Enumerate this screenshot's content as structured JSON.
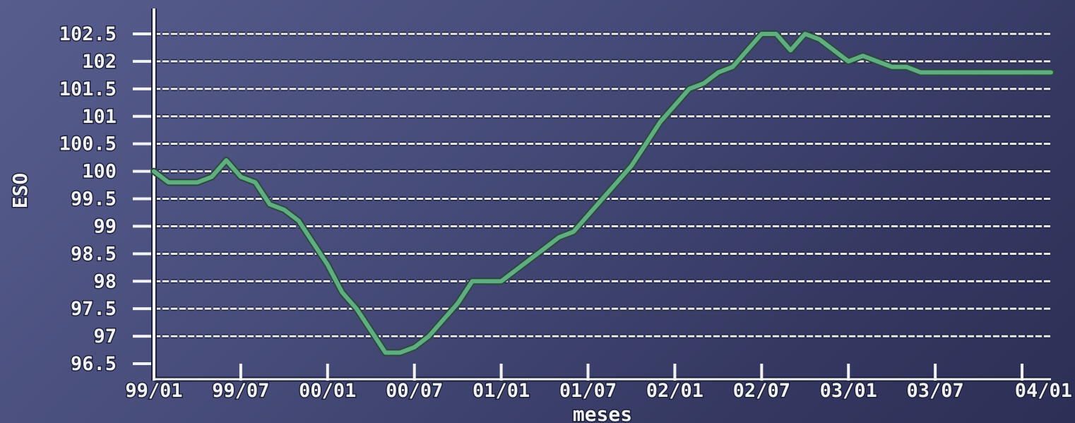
{
  "chart_data": {
    "type": "line",
    "title": "",
    "xlabel": "meses",
    "ylabel": "ESO",
    "grid": true,
    "legend": "none",
    "line_color": "#5fae82",
    "x_tick_labels": [
      "99/01",
      "99/07",
      "00/01",
      "00/07",
      "01/01",
      "01/07",
      "02/01",
      "02/07",
      "03/01",
      "03/07",
      "04/01"
    ],
    "y_tick_labels": [
      "96.5",
      "97",
      "97.5",
      "98",
      "98.5",
      "99",
      "99.5",
      "100",
      "100.5",
      "101",
      "101.5",
      "102",
      "102.5"
    ],
    "y_ticks": [
      96.5,
      97,
      97.5,
      98,
      98.5,
      99,
      99.5,
      100,
      100.5,
      101,
      101.5,
      102,
      102.5
    ],
    "ylim": [
      96.5,
      102.5
    ],
    "x_range_months": [
      0,
      62
    ],
    "series": [
      {
        "x": [
          0,
          1,
          2,
          3,
          4,
          5,
          6,
          7,
          8,
          9,
          10,
          11,
          12,
          13,
          14,
          15,
          16,
          17,
          18,
          19,
          20,
          21,
          22,
          23,
          24,
          25,
          26,
          27,
          28,
          29,
          30,
          31,
          32,
          33,
          34,
          35,
          36,
          37,
          38,
          39,
          40,
          41,
          42,
          43,
          44,
          45,
          46,
          47,
          48,
          49,
          50,
          51,
          52,
          53,
          54,
          55,
          56,
          57,
          58,
          59,
          60,
          61,
          62
        ],
        "values": [
          100.0,
          99.8,
          99.8,
          99.8,
          99.9,
          100.2,
          99.9,
          99.8,
          99.4,
          99.3,
          99.1,
          98.7,
          98.3,
          97.8,
          97.5,
          97.1,
          96.7,
          96.7,
          96.8,
          97.0,
          97.3,
          97.6,
          98.0,
          98.0,
          98.0,
          98.2,
          98.4,
          98.6,
          98.8,
          98.9,
          99.2,
          99.5,
          99.8,
          100.1,
          100.5,
          100.9,
          101.2,
          101.5,
          101.6,
          101.8,
          101.9,
          102.2,
          102.5,
          102.5,
          102.2,
          102.5,
          102.4,
          102.2,
          102.0,
          102.1,
          102.0,
          101.9,
          101.9,
          101.8,
          101.8,
          101.8,
          101.8,
          101.8,
          101.8,
          101.8,
          101.8,
          101.8,
          101.8
        ]
      }
    ]
  }
}
